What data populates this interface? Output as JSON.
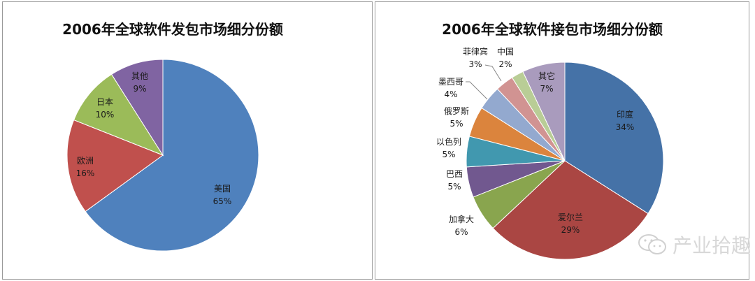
{
  "chart_data": [
    {
      "type": "pie",
      "title": "2006年全球软件发包市场细分份额",
      "start_angle_deg": 0,
      "direction": "clockwise",
      "slices": [
        {
          "label": "美国",
          "value": 65,
          "display": "65%",
          "color": "#4f81bd"
        },
        {
          "label": "欧洲",
          "value": 16,
          "display": "16%",
          "color": "#c0504d"
        },
        {
          "label": "日本",
          "value": 10,
          "display": "10%",
          "color": "#9bbb59"
        },
        {
          "label": "其他",
          "value": 9,
          "display": "9%",
          "color": "#8064a2"
        }
      ]
    },
    {
      "type": "pie",
      "title": "2006年全球软件接包市场细分份额",
      "start_angle_deg": 0,
      "direction": "clockwise",
      "slices": [
        {
          "label": "印度",
          "value": 34,
          "display": "34%",
          "color": "#4572a7"
        },
        {
          "label": "爱尔兰",
          "value": 29,
          "display": "29%",
          "color": "#aa4643"
        },
        {
          "label": "加拿大",
          "value": 6,
          "display": "6%",
          "color": "#89a54e"
        },
        {
          "label": "巴西",
          "value": 5,
          "display": "5%",
          "color": "#71588f"
        },
        {
          "label": "以色列",
          "value": 5,
          "display": "5%",
          "color": "#4198af"
        },
        {
          "label": "俄罗斯",
          "value": 5,
          "display": "5%",
          "color": "#db843d"
        },
        {
          "label": "墨西哥",
          "value": 4,
          "display": "4%",
          "color": "#93a9cf"
        },
        {
          "label": "菲律宾",
          "value": 3,
          "display": "3%",
          "color": "#d19392"
        },
        {
          "label": "中国",
          "value": 2,
          "display": "2%",
          "color": "#b9cd96"
        },
        {
          "label": "其它",
          "value": 7,
          "display": "7%",
          "color": "#a99bbd"
        }
      ]
    }
  ],
  "watermark": {
    "text": "产业拾趣",
    "icon": "wechat-icon"
  }
}
